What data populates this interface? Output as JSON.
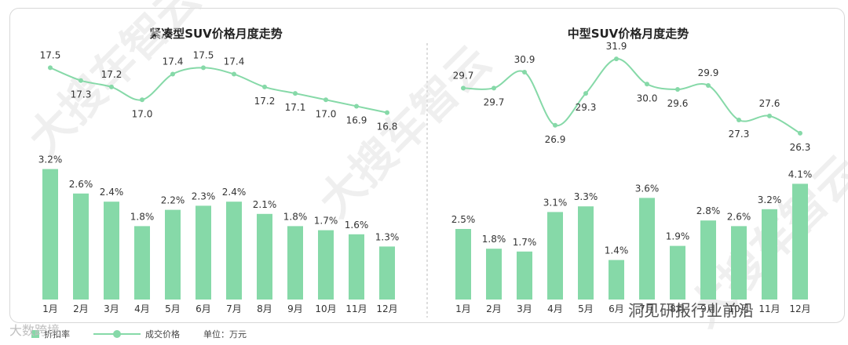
{
  "legend": {
    "bar_label": "折扣率",
    "line_label": "成交价格",
    "unit": "单位：万元"
  },
  "watermark_brand": "大数跨境",
  "watermark_wechat": "洞见研报行业前沿",
  "watermark_diagonal": "大搜车智云",
  "colors": {
    "accent": "#86d9a8",
    "divider": "#bbbbbb"
  },
  "chart_data": [
    {
      "type": "bar+line",
      "title": "紧凑型SUV价格月度走势",
      "categories": [
        "1月",
        "2月",
        "3月",
        "4月",
        "5月",
        "6月",
        "7月",
        "8月",
        "9月",
        "10月",
        "11月",
        "12月"
      ],
      "series": [
        {
          "name": "成交价格",
          "type": "line",
          "values": [
            17.5,
            17.3,
            17.2,
            17.0,
            17.4,
            17.5,
            17.4,
            17.2,
            17.1,
            17.0,
            16.9,
            16.8
          ],
          "labels": [
            "17.5",
            "17.3",
            "17.2",
            "17.0",
            "17.4",
            "17.5",
            "17.4",
            "17.2",
            "17.1",
            "17.0",
            "16.9",
            "16.8"
          ]
        },
        {
          "name": "折扣率",
          "type": "bar",
          "values": [
            3.2,
            2.6,
            2.4,
            1.8,
            2.2,
            2.3,
            2.4,
            2.1,
            1.8,
            1.7,
            1.6,
            1.3
          ],
          "labels": [
            "3.2%",
            "2.6%",
            "2.4%",
            "1.8%",
            "2.2%",
            "2.3%",
            "2.4%",
            "2.1%",
            "1.8%",
            "1.7%",
            "1.6%",
            "1.3%"
          ]
        }
      ]
    },
    {
      "type": "bar+line",
      "title": "中型SUV价格月度走势",
      "categories": [
        "1月",
        "2月",
        "3月",
        "4月",
        "5月",
        "6月",
        "7月",
        "8月",
        "9月",
        "10月",
        "11月",
        "12月"
      ],
      "series": [
        {
          "name": "成交价格",
          "type": "line",
          "values": [
            29.7,
            29.7,
            30.9,
            26.9,
            29.3,
            31.9,
            30.0,
            29.6,
            29.9,
            27.3,
            27.6,
            26.3
          ],
          "labels": [
            "29.7",
            "29.7",
            "30.9",
            "26.9",
            "29.3",
            "31.9",
            "30.0",
            "29.6",
            "29.9",
            "27.3",
            "27.6",
            "26.3"
          ]
        },
        {
          "name": "折扣率",
          "type": "bar",
          "values": [
            2.5,
            1.8,
            1.7,
            3.1,
            3.3,
            1.4,
            3.6,
            1.9,
            2.8,
            2.6,
            3.2,
            4.1
          ],
          "labels": [
            "2.5%",
            "1.8%",
            "1.7%",
            "3.1%",
            "3.3%",
            "1.4%",
            "3.6%",
            "1.9%",
            "2.8%",
            "2.6%",
            "3.2%",
            "4.1%"
          ]
        }
      ]
    }
  ]
}
